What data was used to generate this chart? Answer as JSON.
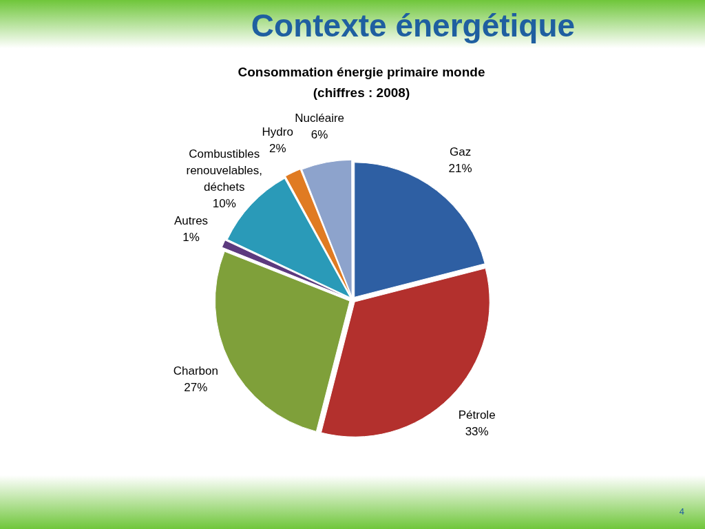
{
  "chart_data": {
    "type": "pie",
    "title": "Contexte énergétique",
    "subtitle": "Consommation énergie primaire monde\n(chiffres : 2008)",
    "categories": [
      "Gaz",
      "Pétrole",
      "Charbon",
      "Autres",
      "Combustibles renouvelables, déchets",
      "Hydro",
      "Nucléaire"
    ],
    "values": [
      21,
      33,
      27,
      1,
      10,
      2,
      6
    ],
    "value_labels": [
      "21%",
      "33%",
      "27%",
      "1%",
      "10%",
      "2%",
      "6%"
    ],
    "colors": [
      "#2e5fa3",
      "#b3302d",
      "#7fa03a",
      "#5c3a7e",
      "#2a9ab8",
      "#e07b22",
      "#8da3cc"
    ],
    "legend": false,
    "annotations": [
      "4"
    ]
  }
}
